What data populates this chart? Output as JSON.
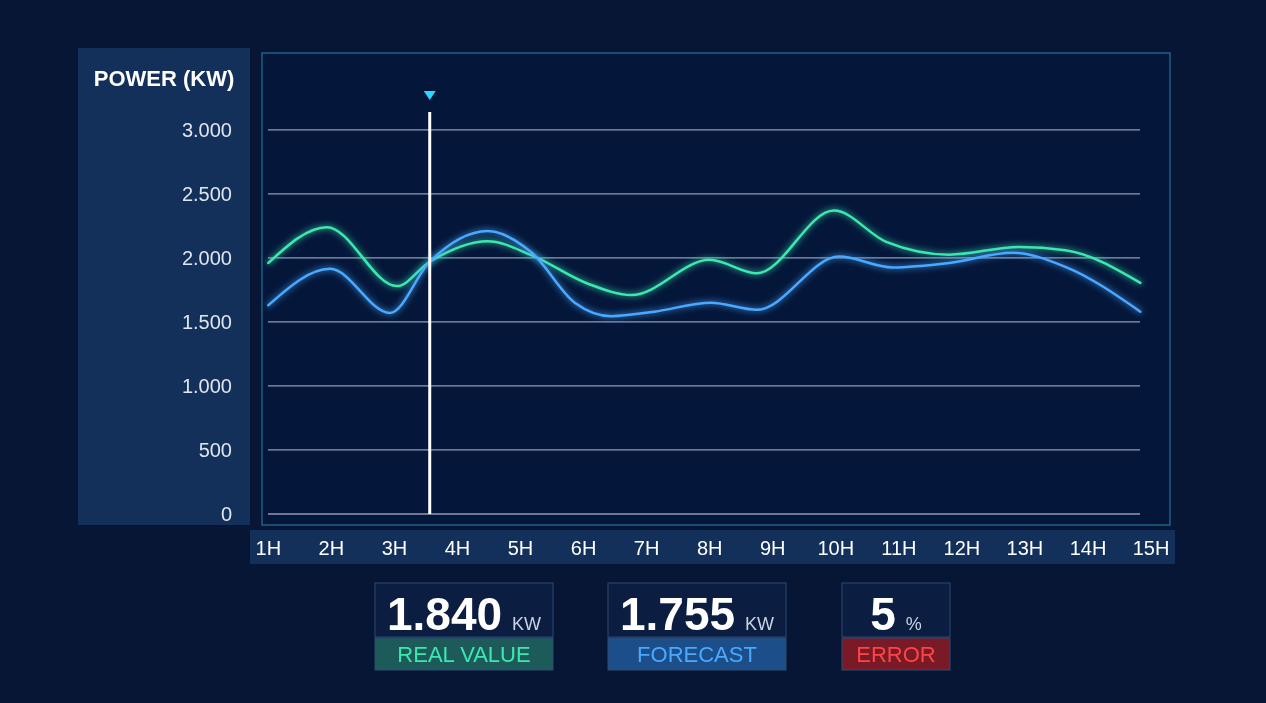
{
  "chart_data": {
    "type": "line",
    "ylabel": "POWER (KW)",
    "xlim": [
      0.9,
      15.3
    ],
    "ylim": [
      0,
      3600
    ],
    "xticks": [
      {
        "value": 1,
        "label": "1H"
      },
      {
        "value": 2,
        "label": "2H"
      },
      {
        "value": 3,
        "label": "3H"
      },
      {
        "value": 4,
        "label": "4H"
      },
      {
        "value": 5,
        "label": "5H"
      },
      {
        "value": 6,
        "label": "6H"
      },
      {
        "value": 7,
        "label": "7H"
      },
      {
        "value": 8,
        "label": "8H"
      },
      {
        "value": 9,
        "label": "9H"
      },
      {
        "value": 10,
        "label": "10H"
      },
      {
        "value": 11,
        "label": "11H"
      },
      {
        "value": 12,
        "label": "12H"
      },
      {
        "value": 13,
        "label": "13H"
      },
      {
        "value": 14,
        "label": "14H"
      },
      {
        "value": 15,
        "label": "15H"
      }
    ],
    "yticks": [
      {
        "value": 0,
        "label": "0"
      },
      {
        "value": 500,
        "label": "500"
      },
      {
        "value": 1000,
        "label": "1.000"
      },
      {
        "value": 1500,
        "label": "1.500"
      },
      {
        "value": 2000,
        "label": "2.000"
      },
      {
        "value": 2500,
        "label": "2.500"
      },
      {
        "value": 3000,
        "label": "3.000"
      }
    ],
    "grid": "y",
    "legend": "bottom",
    "series": [
      {
        "name": "REAL VALUE",
        "color": "#3de8b0",
        "x": [
          1,
          1.93,
          3.04,
          3.56,
          4.48,
          5.18,
          6.06,
          6.76,
          8.0,
          8.75,
          9.97,
          10.8,
          11.8,
          12.9,
          13.64,
          14.83
        ],
        "values": [
          1960,
          2240,
          1780,
          1970,
          2130,
          2020,
          1800,
          1710,
          1985,
          1880,
          2370,
          2125,
          2025,
          2085,
          2060,
          1805
        ]
      },
      {
        "name": "FORECAST",
        "color": "#4aa8ff",
        "x": [
          1,
          1.98,
          2.93,
          3.56,
          4.48,
          5.18,
          5.86,
          6.44,
          7.12,
          8.02,
          8.75,
          10.05,
          10.9,
          11.8,
          12.8,
          13.64,
          14.83
        ],
        "values": [
          1630,
          1915,
          1570,
          1970,
          2210,
          2040,
          1650,
          1545,
          1580,
          1650,
          1595,
          2010,
          1925,
          1960,
          2040,
          1930,
          1580
        ]
      }
    ],
    "ref_lines": [
      {
        "axis": "x",
        "value": 3.56,
        "color": "#ffffff"
      }
    ],
    "annotations": [
      "1.840 KW",
      "1.755 KW",
      "5 %",
      "ERROR"
    ]
  }
}
